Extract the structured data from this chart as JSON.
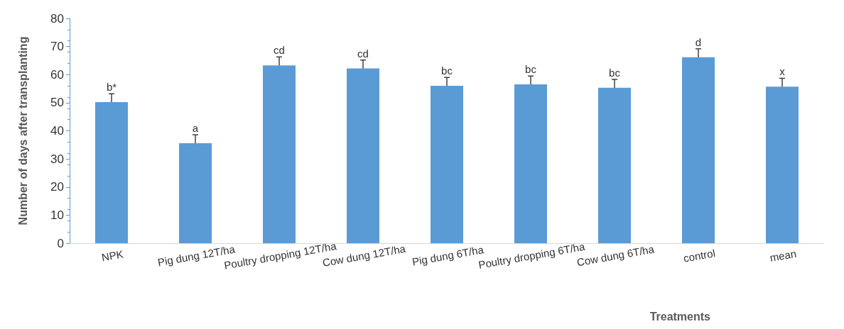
{
  "chart_data": {
    "type": "bar",
    "xlabel": "Treatments",
    "ylabel": "Number of days after transplanting",
    "categories": [
      "NPK",
      "Pig dung 12T/ha",
      "Poultry dropping 12T/ha",
      "Cow dung 12T/ha",
      "Pig dung 6T/ha",
      "Poultry dropping 6T/ha",
      "Cow dung 6T/ha",
      "control",
      "mean"
    ],
    "values": [
      50.2,
      35.6,
      63.3,
      62.2,
      56.0,
      56.5,
      55.3,
      66.2,
      55.7
    ],
    "errors": [
      3,
      3,
      3,
      3,
      3,
      3,
      3,
      3,
      3
    ],
    "value_labels": [
      "b*",
      "a",
      "cd",
      "cd",
      "bc",
      "bc",
      "bc",
      "d",
      "x"
    ],
    "color": "#5b9bd5",
    "ylim": [
      0,
      80
    ],
    "yticks": [
      0,
      10,
      20,
      30,
      40,
      50,
      60,
      70,
      80
    ],
    "grid": false
  }
}
